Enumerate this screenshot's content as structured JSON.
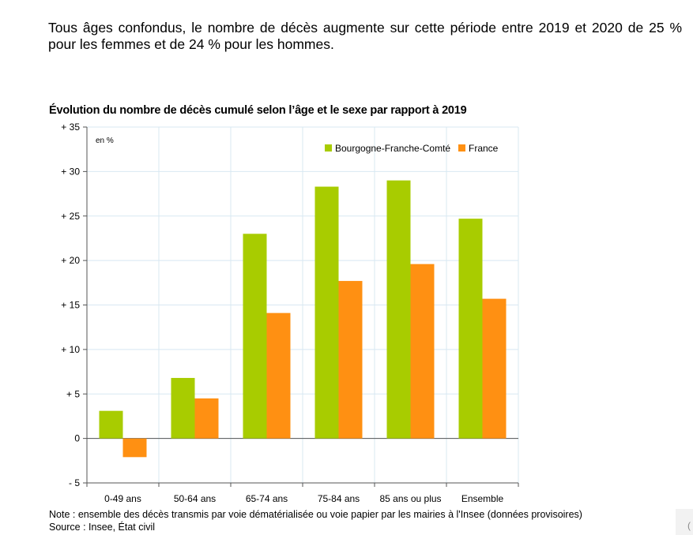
{
  "intro_text": "Tous âges confondus, le nombre de décès augmente sur cette période entre 2019 et 2020 de 25 % pour les femmes et de 24 % pour les hommes.",
  "footnote": {
    "note": "Note : ensemble des décès transmis par voie dématérialisée ou voie papier par les mairies à l'Insee (données provisoires)",
    "source": "Source : Insee, État civil"
  },
  "corner_glyph": "(",
  "colors": {
    "bfc": "#a8cc00",
    "france": "#ff9012",
    "grid": "#d8e8f2",
    "axis": "#555555"
  },
  "chart_data": {
    "type": "bar",
    "title": "Évolution du nombre de décès cumulé selon l’âge et le sexe par rapport à 2019",
    "unit_label": "en %",
    "categories": [
      "0-49 ans",
      "50-64 ans",
      "65-74 ans",
      "75-84 ans",
      "85 ans ou plus",
      "Ensemble"
    ],
    "series": [
      {
        "name": "Bourgogne-Franche-Comté",
        "color": "#a8cc00",
        "values": [
          3.1,
          6.8,
          23.0,
          28.3,
          29.0,
          24.7
        ]
      },
      {
        "name": "France",
        "color": "#ff9012",
        "values": [
          -2.1,
          4.5,
          14.1,
          17.7,
          19.6,
          15.7
        ]
      }
    ],
    "ylim": [
      -5,
      35
    ],
    "yticks": [
      -5,
      0,
      5,
      10,
      15,
      20,
      25,
      30,
      35
    ],
    "ytick_labels": [
      "- 5",
      "0",
      "+ 5",
      "+ 10",
      "+ 15",
      "+ 20",
      "+ 25",
      "+ 30",
      "+ 35"
    ],
    "grid": true,
    "legend": "top-right"
  }
}
